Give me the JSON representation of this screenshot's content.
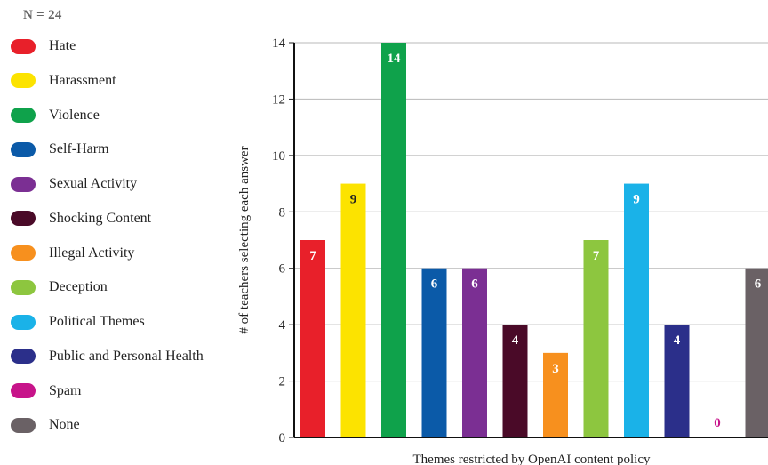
{
  "legend": {
    "n_label": "N = 24"
  },
  "chart_data": {
    "type": "bar",
    "title": "",
    "xlabel": "Themes restricted by OpenAI content policy",
    "ylabel": "# of teachers selecting each answer",
    "ylim": [
      0,
      14
    ],
    "yticks": [
      "0",
      "2",
      "4",
      "6",
      "8",
      "10",
      "12",
      "14"
    ],
    "grid": "horizontal",
    "legend_position": "left",
    "categories": [
      "Hate",
      "Harassment",
      "Violence",
      "Self-Harm",
      "Sexual Activity",
      "Shocking Content",
      "Illegal Activity",
      "Deception",
      "Political Themes",
      "Public and Personal Health",
      "Spam",
      "None"
    ],
    "values": [
      7,
      9,
      14,
      6,
      6,
      4,
      3,
      7,
      9,
      4,
      0,
      6
    ],
    "value_labels": [
      "7",
      "9",
      "14",
      "6",
      "6",
      "4",
      "3",
      "7",
      "9",
      "4",
      "0",
      "6"
    ],
    "colors": [
      "#e8202a",
      "#fce300",
      "#0fa24b",
      "#0b5aa8",
      "#7b2f93",
      "#4a0a28",
      "#f7901e",
      "#8dc63f",
      "#1ab2e8",
      "#2b2f8a",
      "#c7148a",
      "#6a6165"
    ],
    "label_colors": [
      "#ffffff",
      "#222222",
      "#ffffff",
      "#ffffff",
      "#ffffff",
      "#ffffff",
      "#ffffff",
      "#ffffff",
      "#ffffff",
      "#ffffff",
      "#c7148a",
      "#ffffff"
    ]
  }
}
